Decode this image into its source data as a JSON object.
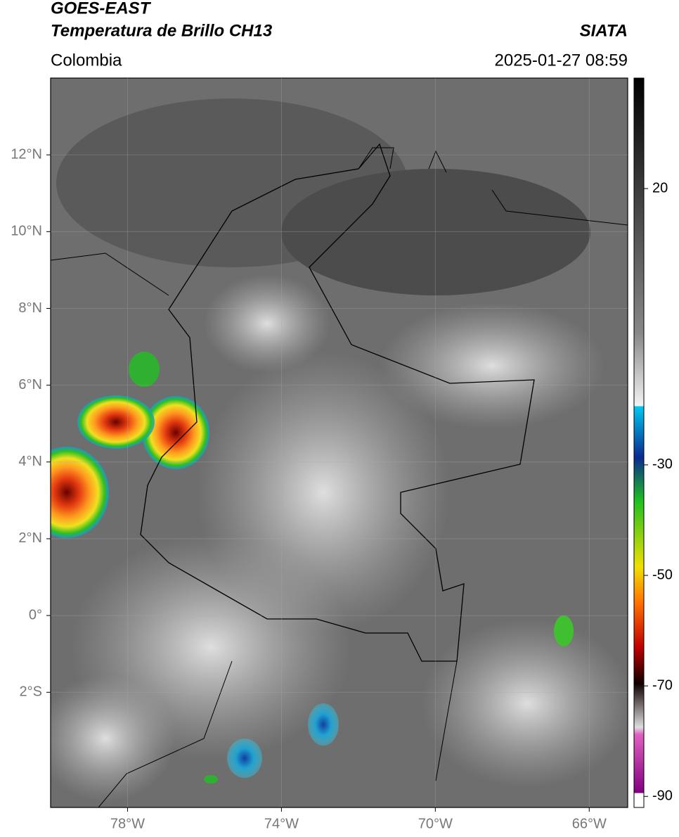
{
  "header": {
    "satellite": "GOES-EAST",
    "product": "Temperatura de Brillo CH13",
    "region": "Colombia",
    "source": "SIATA",
    "datetime": "2025-01-27 08:59"
  },
  "map": {
    "xlim": [
      -80,
      -65
    ],
    "ylim": [
      -5,
      14
    ],
    "xticks": [
      {
        "value": -78,
        "label": "78°W"
      },
      {
        "value": -74,
        "label": "74°W"
      },
      {
        "value": -70,
        "label": "70°W"
      },
      {
        "value": -66,
        "label": "66°W"
      }
    ],
    "yticks": [
      {
        "value": 12,
        "label": "12°N"
      },
      {
        "value": 10,
        "label": "10°N"
      },
      {
        "value": 8,
        "label": "8°N"
      },
      {
        "value": 6,
        "label": "6°N"
      },
      {
        "value": 4,
        "label": "4°N"
      },
      {
        "value": 2,
        "label": "2°N"
      },
      {
        "value": 0,
        "label": "0°"
      },
      {
        "value": -2,
        "label": "2°S"
      }
    ]
  },
  "colorbar": {
    "lim": [
      -92,
      40
    ],
    "ticks": [
      20,
      -30,
      -50,
      -70,
      -90
    ]
  }
}
